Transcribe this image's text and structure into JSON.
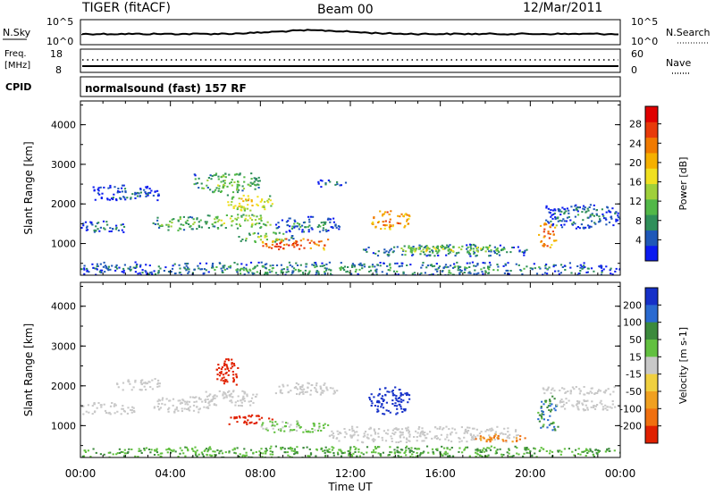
{
  "header": {
    "title": "TIGER (fitACF)",
    "beam": "Beam 00",
    "date": "12/Mar/2011"
  },
  "top_panels": {
    "nsky_label": "N.Sky",
    "nsearch_label": "N.Search",
    "nsky_ticks": [
      "10^5",
      "10^0"
    ],
    "nsearch_ticks": [
      "10^5",
      "10^0"
    ],
    "freq_label_line1": "Freq.",
    "freq_label_line2": "[MHz]",
    "freq_ticks": [
      "18",
      "8"
    ],
    "nave_label": "Nave",
    "nave_ticks": [
      "60",
      "0"
    ],
    "cpid_label": "CPID",
    "cpid_text": "normalsound (fast) 157 RF"
  },
  "chart_data": [
    {
      "type": "heatmap",
      "title": "",
      "ylabel": "Slant Range [km]",
      "yticks": [
        "1000",
        "2000",
        "3000",
        "4000"
      ],
      "ylim": [
        200,
        4600
      ],
      "xlim_hours": [
        0,
        24
      ],
      "colorbar": {
        "label": "Power [dB]",
        "ticks": [
          "4",
          "8",
          "12",
          "16",
          "20",
          "24",
          "28"
        ],
        "colors": [
          "#0b1bf0",
          "#1f58b8",
          "#2f8f5a",
          "#52b848",
          "#9fd03a",
          "#f0e020",
          "#f5b000",
          "#f07a00",
          "#e83a0a",
          "#e00000"
        ]
      },
      "echo_regions": [
        {
          "t0": 0.0,
          "t1": 2.0,
          "r0": 1300,
          "r1": 1600,
          "power": 8
        },
        {
          "t0": 0.5,
          "t1": 3.5,
          "r0": 2100,
          "r1": 2500,
          "power": 6
        },
        {
          "t0": 3.2,
          "t1": 5.5,
          "r0": 1350,
          "r1": 1700,
          "power": 12
        },
        {
          "t0": 5.0,
          "t1": 8.0,
          "r0": 2300,
          "r1": 2800,
          "power": 13
        },
        {
          "t0": 5.5,
          "t1": 8.5,
          "r0": 1400,
          "r1": 1750,
          "power": 15
        },
        {
          "t0": 6.5,
          "t1": 8.5,
          "r0": 1850,
          "r1": 2250,
          "power": 19
        },
        {
          "t0": 7.0,
          "t1": 9.5,
          "r0": 1050,
          "r1": 1300,
          "power": 14
        },
        {
          "t0": 8.0,
          "t1": 11.0,
          "r0": 850,
          "r1": 1150,
          "power": 27
        },
        {
          "t0": 8.5,
          "t1": 11.5,
          "r0": 1300,
          "r1": 1700,
          "power": 8
        },
        {
          "t0": 10.5,
          "t1": 11.8,
          "r0": 2450,
          "r1": 2650,
          "power": 6
        },
        {
          "t0": 12.8,
          "t1": 14.6,
          "r0": 1380,
          "r1": 1880,
          "power": 24
        },
        {
          "t0": 12.5,
          "t1": 20.0,
          "r0": 700,
          "r1": 1000,
          "power": 10
        },
        {
          "t0": 14.0,
          "t1": 19.0,
          "r0": 800,
          "r1": 950,
          "power": 17
        },
        {
          "t0": 20.3,
          "t1": 21.2,
          "r0": 900,
          "r1": 1550,
          "power": 25
        },
        {
          "t0": 20.5,
          "t1": 24.0,
          "r0": 1400,
          "r1": 2000,
          "power": 7
        },
        {
          "t0": 0.0,
          "t1": 24.0,
          "r0": 200,
          "r1": 550,
          "power": 9
        }
      ]
    },
    {
      "type": "heatmap",
      "title": "",
      "ylabel": "Slant Range [km]",
      "yticks": [
        "1000",
        "2000",
        "3000",
        "4000"
      ],
      "ylim": [
        200,
        4600
      ],
      "xlim_hours": [
        0,
        24
      ],
      "xlabel": "Time UT",
      "xticks": [
        "00:00",
        "04:00",
        "08:00",
        "12:00",
        "16:00",
        "20:00",
        "00:00"
      ],
      "colorbar": {
        "label": "Velocity [m s-1]",
        "ticks": [
          "200",
          "100",
          "50",
          "15",
          "-15",
          "-50",
          "-100",
          "-200"
        ],
        "colors": [
          "#1530c8",
          "#2a6ad0",
          "#3c8a3c",
          "#62c040",
          "#c8c8c8",
          "#f0d040",
          "#f0a020",
          "#f07010",
          "#e02000"
        ]
      },
      "echo_regions": [
        {
          "t0": 0.0,
          "t1": 2.5,
          "r0": 1300,
          "r1": 1600,
          "velocity": 0
        },
        {
          "t0": 1.5,
          "t1": 3.5,
          "r0": 1900,
          "r1": 2200,
          "velocity": 0
        },
        {
          "t0": 3.2,
          "t1": 6.0,
          "r0": 1350,
          "r1": 1750,
          "velocity": 0
        },
        {
          "t0": 5.5,
          "t1": 8.0,
          "r0": 1500,
          "r1": 1900,
          "velocity": 0
        },
        {
          "t0": 6.5,
          "t1": 8.5,
          "r0": 1050,
          "r1": 1300,
          "velocity": -200
        },
        {
          "t0": 6.0,
          "t1": 7.0,
          "r0": 2000,
          "r1": 2800,
          "velocity": -200
        },
        {
          "t0": 8.0,
          "t1": 11.0,
          "r0": 850,
          "r1": 1150,
          "velocity": 20
        },
        {
          "t0": 8.5,
          "t1": 11.5,
          "r0": 1800,
          "r1": 2100,
          "velocity": 0
        },
        {
          "t0": 12.8,
          "t1": 14.6,
          "r0": 1300,
          "r1": 2000,
          "velocity": 200
        },
        {
          "t0": 11.0,
          "t1": 19.5,
          "r0": 600,
          "r1": 1000,
          "velocity": 0
        },
        {
          "t0": 17.5,
          "t1": 19.8,
          "r0": 600,
          "r1": 800,
          "velocity": -80
        },
        {
          "t0": 20.3,
          "t1": 21.2,
          "r0": 900,
          "r1": 1800,
          "velocity": 60
        },
        {
          "t0": 20.5,
          "t1": 24.0,
          "r0": 1800,
          "r1": 2000,
          "velocity": 0
        },
        {
          "t0": 21.0,
          "t1": 24.0,
          "r0": 1400,
          "r1": 1700,
          "velocity": 0
        },
        {
          "t0": 0.0,
          "t1": 24.0,
          "r0": 200,
          "r1": 500,
          "velocity": 30
        }
      ]
    }
  ]
}
